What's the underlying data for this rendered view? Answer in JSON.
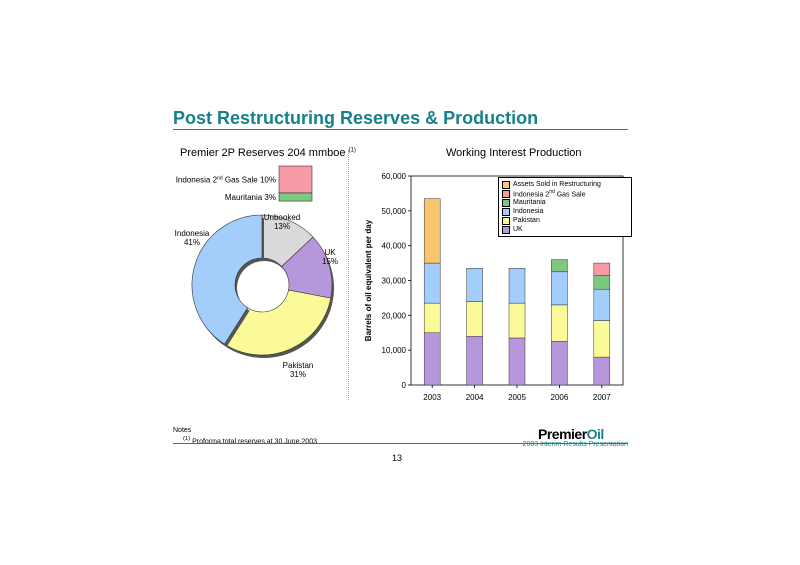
{
  "page": {
    "title": "Post Restructuring Reserves & Production",
    "notes_heading": "Notes",
    "footnote_marker": "(1)",
    "footnote_text": "Proforma total reserves at 30 June 2003",
    "logo_premier": "Premier",
    "logo_oil": "Oil",
    "footer_caption": "2003 Interim Results Presentation",
    "page_number": "13"
  },
  "colors": {
    "teal": "#17808a",
    "purple": "#b797db",
    "yellow": "#fafa99",
    "blue": "#a3cdfa",
    "green": "#7ec77e",
    "pink": "#f89aa5",
    "orange": "#f8c66e",
    "grey": "#d9d9d9"
  },
  "chart_data": [
    {
      "type": "pie",
      "title": "Premier 2P Reserves 204 mmboe",
      "title_sup": "(1)",
      "donut": true,
      "slices": [
        {
          "name": "Unbooked",
          "label": "Unbooked",
          "pct_text": "13%",
          "value": 13,
          "color": "#d9d9d9"
        },
        {
          "name": "UK",
          "label": "UK",
          "pct_text": "15%",
          "value": 15,
          "color": "#b797db"
        },
        {
          "name": "Pakistan",
          "label": "Pakistan",
          "pct_text": "31%",
          "value": 31,
          "color": "#fafa99"
        },
        {
          "name": "Indonesia",
          "label": "Indonesia",
          "pct_text": "41%",
          "value": 41,
          "color": "#a3cdfa"
        }
      ],
      "breakout": [
        {
          "name": "Indonesia 2nd Gas Sale",
          "label_main": "Indonesia 2",
          "label_sup": "nd",
          "label_rest": " Gas Sale 10%",
          "value": 10,
          "color": "#f89aa5"
        },
        {
          "name": "Mauritania",
          "label_main": "Mauritania 3%",
          "label_sup": "",
          "label_rest": "",
          "value": 3,
          "color": "#7ec77e"
        }
      ]
    },
    {
      "type": "bar",
      "stacked": true,
      "title": "Working Interest Production",
      "ylabel": "Barrels of oil equivalent per day",
      "xlabel": "",
      "categories": [
        "2003",
        "2004",
        "2005",
        "2006",
        "2007"
      ],
      "ylim": [
        0,
        60000
      ],
      "yticks": [
        0,
        10000,
        20000,
        30000,
        40000,
        50000,
        60000
      ],
      "ytick_labels": [
        "0",
        "10,000",
        "20,000",
        "30,000",
        "40,000",
        "50,000",
        "60,000"
      ],
      "grid": false,
      "legend_position": "top-right",
      "series": [
        {
          "name": "UK",
          "color": "#b797db",
          "values": [
            15000,
            14000,
            13500,
            12500,
            8000
          ]
        },
        {
          "name": "Pakistan",
          "color": "#fafa99",
          "values": [
            8500,
            10000,
            10000,
            10500,
            10500
          ]
        },
        {
          "name": "Indonesia",
          "color": "#a3cdfa",
          "values": [
            11500,
            9500,
            10000,
            9500,
            9000
          ]
        },
        {
          "name": "Mauritania",
          "color": "#7ec77e",
          "values": [
            0,
            0,
            0,
            3500,
            4000
          ]
        },
        {
          "name": "Indonesia 2nd Gas Sale",
          "color": "#f89aa5",
          "values": [
            0,
            0,
            0,
            0,
            3500
          ]
        },
        {
          "name": "Assets Sold in Restructuring",
          "color": "#f8c66e",
          "values": [
            18500,
            0,
            0,
            0,
            0
          ]
        }
      ],
      "legend": [
        {
          "main": "Assets Sold in Restructuring",
          "sup": "",
          "rest": "",
          "color": "#f8c66e"
        },
        {
          "main": "Indonesia 2",
          "sup": "nd",
          "rest": " Gas Sale",
          "color": "#f89aa5"
        },
        {
          "main": "Mauritania",
          "sup": "",
          "rest": "",
          "color": "#7ec77e"
        },
        {
          "main": "Indonesia",
          "sup": "",
          "rest": "",
          "color": "#a3cdfa"
        },
        {
          "main": "Pakistan",
          "sup": "",
          "rest": "",
          "color": "#fafa99"
        },
        {
          "main": "UK",
          "sup": "",
          "rest": "",
          "color": "#b797db"
        }
      ]
    }
  ]
}
